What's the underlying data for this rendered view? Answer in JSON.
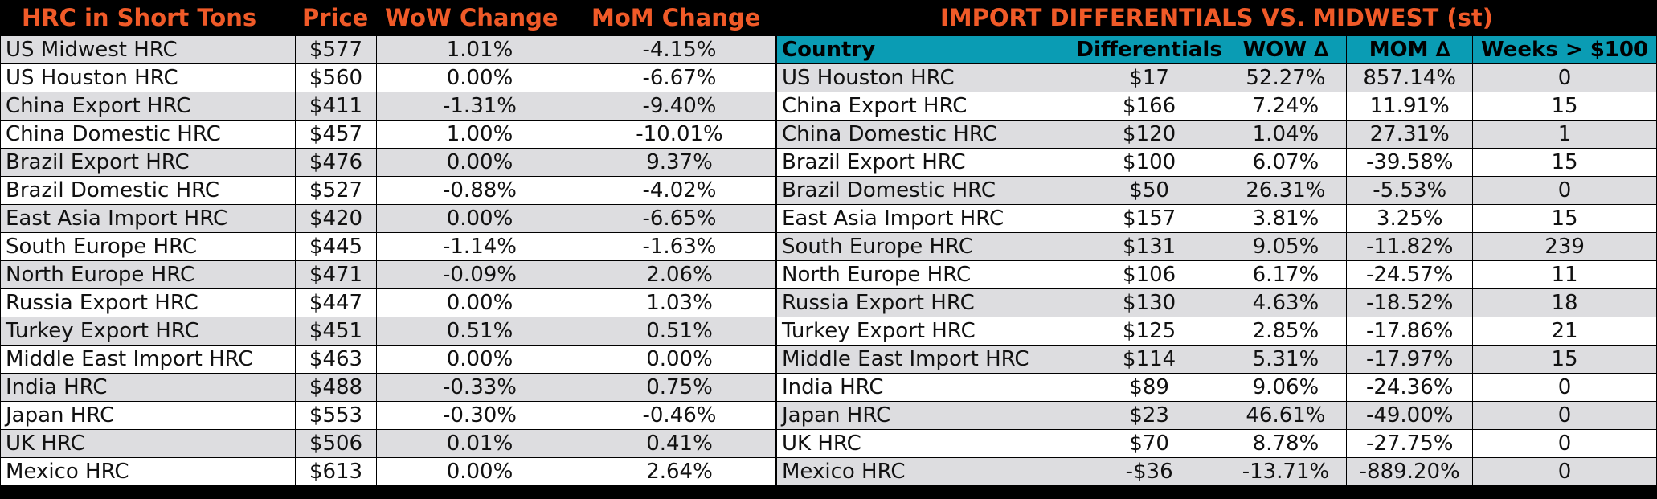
{
  "colors": {
    "header_text": "#F05A28",
    "header_bg": "#000000",
    "teal_header": "#0A9CB4",
    "row_alt": "#DDDDE0",
    "row_plain": "#FFFFFF"
  },
  "left": {
    "headers": [
      "HRC in Short Tons",
      "Price",
      "WoW Change",
      "MoM Change"
    ],
    "rows": [
      {
        "name": "US Midwest HRC",
        "price": "$577",
        "wow": "1.01%",
        "mom": "-4.15%"
      },
      {
        "name": "US Houston HRC",
        "price": "$560",
        "wow": "0.00%",
        "mom": "-6.67%"
      },
      {
        "name": "China Export HRC",
        "price": "$411",
        "wow": "-1.31%",
        "mom": "-9.40%"
      },
      {
        "name": "China Domestic HRC",
        "price": "$457",
        "wow": "1.00%",
        "mom": "-10.01%"
      },
      {
        "name": "Brazil Export HRC",
        "price": "$476",
        "wow": "0.00%",
        "mom": "9.37%"
      },
      {
        "name": "Brazil Domestic HRC",
        "price": "$527",
        "wow": "-0.88%",
        "mom": "-4.02%"
      },
      {
        "name": "East Asia Import HRC",
        "price": "$420",
        "wow": "0.00%",
        "mom": "-6.65%"
      },
      {
        "name": "South Europe HRC",
        "price": "$445",
        "wow": "-1.14%",
        "mom": "-1.63%"
      },
      {
        "name": "North Europe HRC",
        "price": "$471",
        "wow": "-0.09%",
        "mom": "2.06%"
      },
      {
        "name": "Russia Export HRC",
        "price": "$447",
        "wow": "0.00%",
        "mom": "1.03%"
      },
      {
        "name": "Turkey Export HRC",
        "price": "$451",
        "wow": "0.51%",
        "mom": "0.51%"
      },
      {
        "name": "Middle East Import HRC",
        "price": "$463",
        "wow": "0.00%",
        "mom": "0.00%"
      },
      {
        "name": "India HRC",
        "price": "$488",
        "wow": "-0.33%",
        "mom": "0.75%"
      },
      {
        "name": "Japan HRC",
        "price": "$553",
        "wow": "-0.30%",
        "mom": "-0.46%"
      },
      {
        "name": "UK HRC",
        "price": "$506",
        "wow": "0.01%",
        "mom": "0.41%"
      },
      {
        "name": "Mexico HRC",
        "price": "$613",
        "wow": "0.00%",
        "mom": "2.64%"
      }
    ]
  },
  "right": {
    "title": "IMPORT DIFFERENTIALS VS. MIDWEST (st)",
    "headers": [
      "Country",
      "Differentials",
      "WOW ∆",
      "MOM ∆",
      "Weeks > $100"
    ],
    "rows": [
      {
        "name": "US Houston HRC",
        "diff": "$17",
        "wow": "52.27%",
        "mom": "857.14%",
        "weeks": "0"
      },
      {
        "name": "China Export HRC",
        "diff": "$166",
        "wow": "7.24%",
        "mom": "11.91%",
        "weeks": "15"
      },
      {
        "name": "China Domestic HRC",
        "diff": "$120",
        "wow": "1.04%",
        "mom": "27.31%",
        "weeks": "1"
      },
      {
        "name": "Brazil Export HRC",
        "diff": "$100",
        "wow": "6.07%",
        "mom": "-39.58%",
        "weeks": "15"
      },
      {
        "name": "Brazil Domestic HRC",
        "diff": "$50",
        "wow": "26.31%",
        "mom": "-5.53%",
        "weeks": "0"
      },
      {
        "name": "East Asia Import HRC",
        "diff": "$157",
        "wow": "3.81%",
        "mom": "3.25%",
        "weeks": "15"
      },
      {
        "name": "South Europe HRC",
        "diff": "$131",
        "wow": "9.05%",
        "mom": "-11.82%",
        "weeks": "239"
      },
      {
        "name": "North Europe HRC",
        "diff": "$106",
        "wow": "6.17%",
        "mom": "-24.57%",
        "weeks": "11"
      },
      {
        "name": "Russia Export HRC",
        "diff": "$130",
        "wow": "4.63%",
        "mom": "-18.52%",
        "weeks": "18"
      },
      {
        "name": "Turkey Export HRC",
        "diff": "$125",
        "wow": "2.85%",
        "mom": "-17.86%",
        "weeks": "21"
      },
      {
        "name": "Middle East Import HRC",
        "diff": "$114",
        "wow": "5.31%",
        "mom": "-17.97%",
        "weeks": "15"
      },
      {
        "name": "India HRC",
        "diff": "$89",
        "wow": "9.06%",
        "mom": "-24.36%",
        "weeks": "0"
      },
      {
        "name": "Japan HRC",
        "diff": "$23",
        "wow": "46.61%",
        "mom": "-49.00%",
        "weeks": "0"
      },
      {
        "name": "UK HRC",
        "diff": "$70",
        "wow": "8.78%",
        "mom": "-27.75%",
        "weeks": "0"
      },
      {
        "name": "Mexico HRC",
        "diff": "-$36",
        "wow": "-13.71%",
        "mom": "-889.20%",
        "weeks": "0"
      }
    ]
  }
}
